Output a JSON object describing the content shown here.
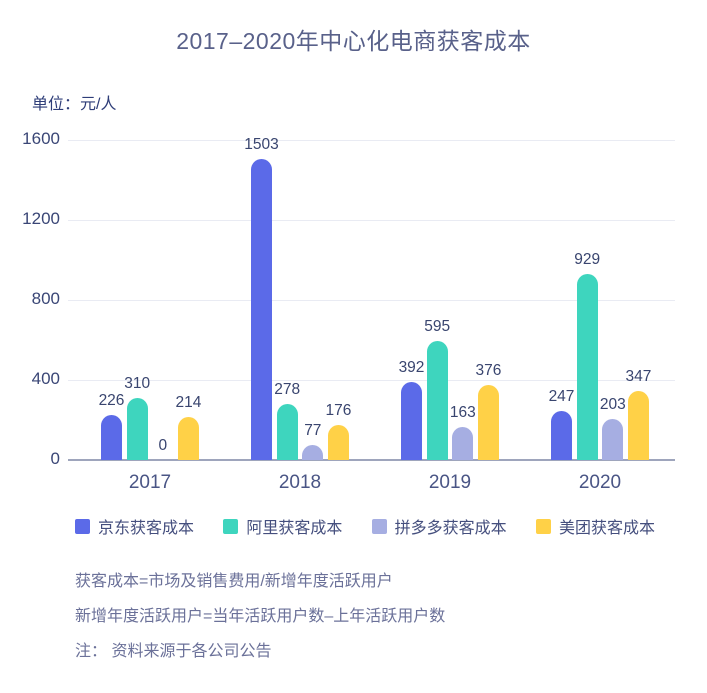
{
  "title": "2017–2020年中心化电商获客成本",
  "unit_label": "单位：元/人",
  "chart_data": {
    "type": "bar",
    "title": "2017–2020年中心化电商获客成本",
    "categories": [
      "2017",
      "2018",
      "2019",
      "2020"
    ],
    "series": [
      {
        "name": "京东获客成本",
        "color": "#5B6AE8",
        "values": [
          226,
          1503,
          392,
          247
        ]
      },
      {
        "name": "阿里获客成本",
        "color": "#3ED5BE",
        "values": [
          310,
          278,
          595,
          929
        ]
      },
      {
        "name": "拼多多获客成本",
        "color": "#A6AEE2",
        "values": [
          0,
          77,
          163,
          203
        ]
      },
      {
        "name": "美团获客成本",
        "color": "#FFD147",
        "values": [
          214,
          176,
          376,
          347
        ]
      }
    ],
    "xlabel": "",
    "ylabel": "单位：元/人",
    "ylim": [
      0,
      1600
    ],
    "yticks": [
      0,
      400,
      800,
      1200,
      1600
    ],
    "grid": true,
    "legend_position": "bottom",
    "value_labels": true
  },
  "colors": {
    "grid": "#E9EBF3",
    "axis": "#9EA5BC",
    "tick_text": "#3A4676",
    "value_text": "#39456F",
    "note_text": "#6B7199"
  },
  "notes": [
    "获客成本=市场及销售费用/新增年度活跃用户",
    "新增年度活跃用户=当年活跃用户数–上年活跃用户数",
    "注： 资料来源于各公司公告"
  ]
}
